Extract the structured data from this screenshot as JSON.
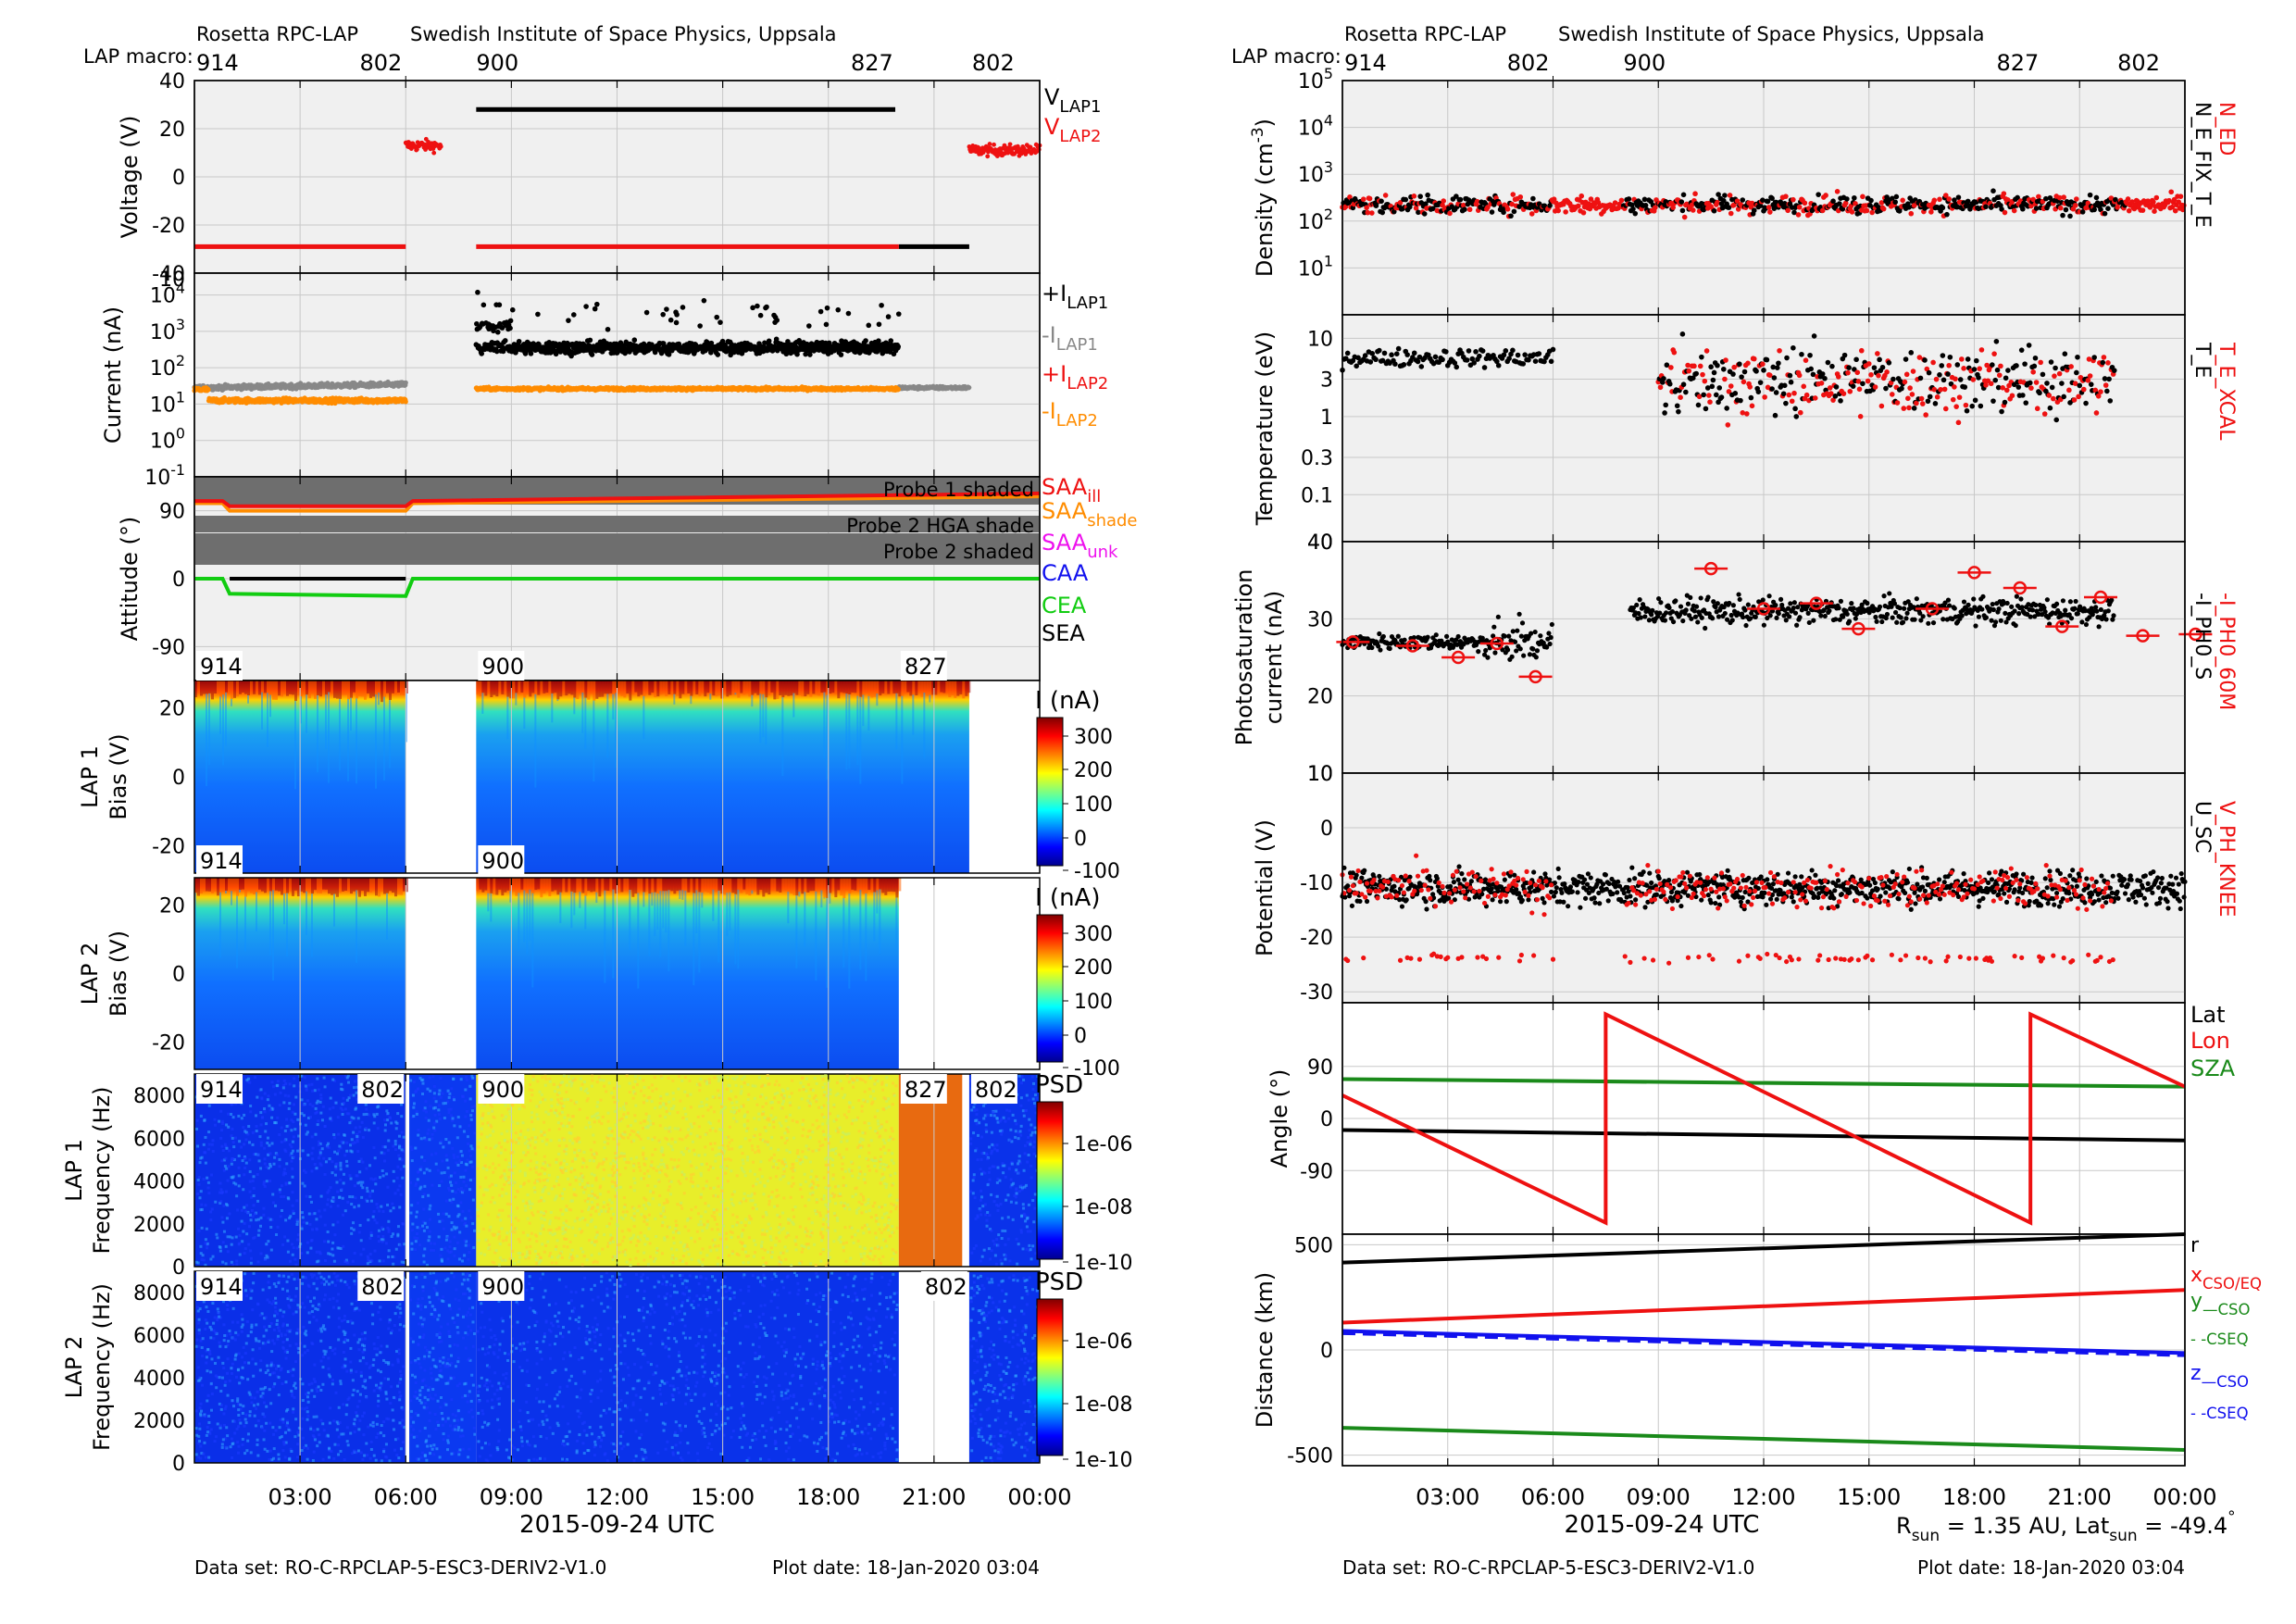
{
  "header": {
    "instrument": "Rosetta RPC-LAP",
    "institute": "Swedish Institute of Space Physics, Uppsala",
    "macro_label": "LAP macro:",
    "macros": [
      "914",
      "802",
      "900",
      "827",
      "802"
    ]
  },
  "footer": {
    "dataset": "Data set: RO-C-RPCLAP-5-ESC3-DERIV2-V1.0",
    "plotdate": "Plot date: 18-Jan-2020 03:04",
    "rsun_pre": "R",
    "rsun_sub": "sun",
    "rsun_val": " = 1.35 AU, Lat",
    "lat_sub": "sun",
    "lat_val": " = -49.4",
    "lat_deg": "°"
  },
  "colors": {
    "panel_bg": "#f0f0f0",
    "grid": "#c8c8c8",
    "black": "#000000",
    "red": "#ee1111",
    "gray": "#888888",
    "orange": "#ff8c00",
    "green": "#11cc11",
    "dkgreen": "#1a8a1a",
    "blue": "#1111ee",
    "magenta": "#ee11ee",
    "shade": "#6e6e6e"
  },
  "chart_data": [
    {
      "type": "line",
      "title": "",
      "xlabel": "2015-09-24 UTC",
      "x": [
        "03:00",
        "06:00",
        "09:00",
        "12:00",
        "15:00",
        "18:00",
        "21:00",
        "00:00"
      ],
      "ylabel": "Voltage (V)",
      "ylim": [
        -40,
        40
      ],
      "yticks": [
        "40",
        "20",
        "0",
        "-20",
        "-40"
      ],
      "series": [
        {
          "name": "V",
          "sub": "LAP1",
          "color": "black",
          "segments": [
            [
              8,
              28,
              19.9
            ],
            [
              20,
              -29,
              22
            ]
          ]
        },
        {
          "name": "V",
          "sub": "LAP2",
          "color": "red",
          "segments": [
            [
              0,
              -29,
              6
            ],
            [
              6,
              13,
              7
            ],
            [
              8,
              -29,
              20
            ],
            [
              22,
              11,
              24
            ]
          ]
        }
      ]
    },
    {
      "type": "scatter",
      "ylabel": "Current (nA)",
      "yscale": "log",
      "yticks": [
        "10^4",
        "10^3",
        "10^2",
        "10^1",
        "10^0",
        "10^-1"
      ],
      "series": [
        {
          "name": "+I",
          "sub": "LAP1",
          "color": "black"
        },
        {
          "name": "-I",
          "sub": "LAP1",
          "color": "gray"
        },
        {
          "name": "+I",
          "sub": "LAP2",
          "color": "red"
        },
        {
          "name": "-I",
          "sub": "LAP2",
          "color": "orange"
        }
      ]
    },
    {
      "type": "line",
      "ylabel": "Attitude (°)",
      "ylim": [
        -135,
        135
      ],
      "yticks": [
        "90",
        "0",
        "-90"
      ],
      "shade_labels": [
        "Probe 1 shaded",
        "Probe 2 HGA shade",
        "Probe 2 shaded"
      ],
      "series": [
        {
          "name": "SAA",
          "sub": "ill",
          "color": "red"
        },
        {
          "name": "SAA",
          "sub": "shade",
          "color": "orange"
        },
        {
          "name": "SAA",
          "sub": "unk",
          "color": "magenta"
        },
        {
          "name": "CAA",
          "color": "blue"
        },
        {
          "name": "CEA",
          "color": "green"
        },
        {
          "name": "SEA",
          "color": "black"
        }
      ]
    },
    {
      "type": "heatmap",
      "ylabel1": "LAP 1",
      "ylabel2": "Bias (V)",
      "yticks": [
        "20",
        "0",
        "-20"
      ],
      "cbar_label": "I (nA)",
      "cbar_ticks": [
        "300",
        "200",
        "100",
        "0",
        "-100"
      ],
      "macro_tags": [
        "914",
        "900",
        "827"
      ]
    },
    {
      "type": "heatmap",
      "ylabel1": "LAP 2",
      "ylabel2": "Bias (V)",
      "yticks": [
        "20",
        "0",
        "-20"
      ],
      "cbar_label": "I (nA)",
      "cbar_ticks": [
        "300",
        "200",
        "100",
        "0",
        "-100"
      ],
      "macro_tags": [
        "914",
        "900"
      ]
    },
    {
      "type": "heatmap",
      "ylabel1": "LAP 1",
      "ylabel2": "Frequency (Hz)",
      "yticks": [
        "8000",
        "6000",
        "4000",
        "2000",
        "0"
      ],
      "cbar_label": "PSD",
      "cbar_ticks": [
        "1e-06",
        "1e-08",
        "1e-10"
      ],
      "macro_tags": [
        "914",
        "802",
        "900",
        "827",
        "802"
      ]
    },
    {
      "type": "heatmap",
      "ylabel1": "LAP 2",
      "ylabel2": "Frequency (Hz)",
      "yticks": [
        "8000",
        "6000",
        "4000",
        "2000",
        "0"
      ],
      "cbar_label": "PSD",
      "cbar_ticks": [
        "1e-06",
        "1e-08",
        "1e-10"
      ],
      "macro_tags": [
        "914",
        "802",
        "900",
        "802"
      ]
    },
    {
      "type": "scatter",
      "ylabel": "Density (cm^-3)",
      "yscale": "log",
      "yticks": [
        "10^5",
        "10^4",
        "10^3",
        "10^2",
        "10^1"
      ],
      "series": [
        {
          "name": "N_ED",
          "color": "red"
        },
        {
          "name": "N_E_FIX_T_E",
          "color": "black"
        }
      ]
    },
    {
      "type": "scatter",
      "ylabel": "Temperature (eV)",
      "yscale": "log",
      "yticks": [
        "10",
        "3",
        "1",
        "0.3",
        "0.1"
      ],
      "series": [
        {
          "name": "T_E_XCAL",
          "color": "red"
        },
        {
          "name": "T_E",
          "color": "black"
        }
      ]
    },
    {
      "type": "scatter",
      "ylabel1": "Photosaturation",
      "ylabel2": "current (nA)",
      "ylim": [
        10,
        40
      ],
      "yticks": [
        "40",
        "30",
        "20",
        "10"
      ],
      "series": [
        {
          "name": "-I_PH0_60M",
          "color": "red"
        },
        {
          "name": "-I_PH0_S",
          "color": "black"
        }
      ],
      "ph0_60m_points": [
        [
          0.3,
          27
        ],
        [
          2,
          26.5
        ],
        [
          3.3,
          25
        ],
        [
          4.4,
          26.8
        ],
        [
          5.5,
          22.5
        ],
        [
          10.5,
          36.5
        ],
        [
          12,
          31.3
        ],
        [
          13.5,
          32
        ],
        [
          14.7,
          28.7
        ],
        [
          16.8,
          31.3
        ],
        [
          18,
          36
        ],
        [
          19.3,
          34
        ],
        [
          20.5,
          29
        ],
        [
          21.6,
          32.8
        ],
        [
          22.8,
          27.8
        ],
        [
          24.3,
          28
        ]
      ]
    },
    {
      "type": "scatter",
      "ylabel": "Potential (V)",
      "ylim": [
        -32,
        10
      ],
      "yticks": [
        "10",
        "0",
        "-10",
        "-20",
        "-30"
      ],
      "series": [
        {
          "name": "V_PH_KNEE",
          "color": "red"
        },
        {
          "name": "U_SC",
          "color": "black"
        }
      ]
    },
    {
      "type": "line",
      "ylabel": "Angle (°)",
      "ylim": [
        -200,
        200
      ],
      "yticks": [
        "90",
        "0",
        "-90"
      ],
      "series": [
        {
          "name": "Lat",
          "color": "black"
        },
        {
          "name": "Lon",
          "color": "red"
        },
        {
          "name": "SZA",
          "color": "dkgreen"
        }
      ]
    },
    {
      "type": "line",
      "ylabel": "Distance (km)",
      "ylim": [
        -550,
        550
      ],
      "yticks": [
        "500",
        "0",
        "-500"
      ],
      "series": [
        {
          "name": "r",
          "color": "black"
        },
        {
          "name": "x",
          "sub": "CSO/EQ",
          "color": "red"
        },
        {
          "name": "y",
          "sub": "—CSO",
          "color": "dkgreen"
        },
        {
          "name": "",
          "sub": "- -CSEQ",
          "color": "dkgreen"
        },
        {
          "name": "z",
          "sub": "—CSO",
          "color": "blue"
        },
        {
          "name": "",
          "sub": "- -CSEQ",
          "color": "blue"
        }
      ]
    }
  ]
}
